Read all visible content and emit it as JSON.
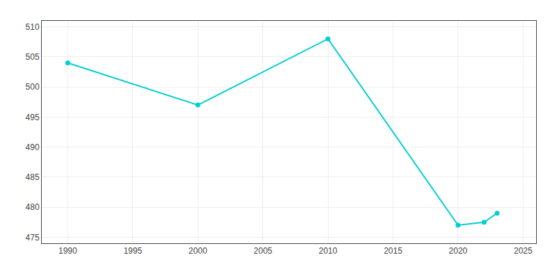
{
  "chart_data": {
    "type": "line",
    "x": [
      1990,
      2000,
      2010,
      2020,
      2022,
      2023
    ],
    "values": [
      504,
      497,
      508,
      477,
      477.5,
      479
    ],
    "color": "#00CED1",
    "marker": "circle",
    "xlim": [
      1988,
      2026
    ],
    "ylim": [
      474,
      511
    ],
    "xticks": [
      1990,
      1995,
      2000,
      2005,
      2010,
      2015,
      2020,
      2025
    ],
    "yticks": [
      475,
      480,
      485,
      490,
      495,
      500,
      505,
      510
    ],
    "grid": true
  }
}
